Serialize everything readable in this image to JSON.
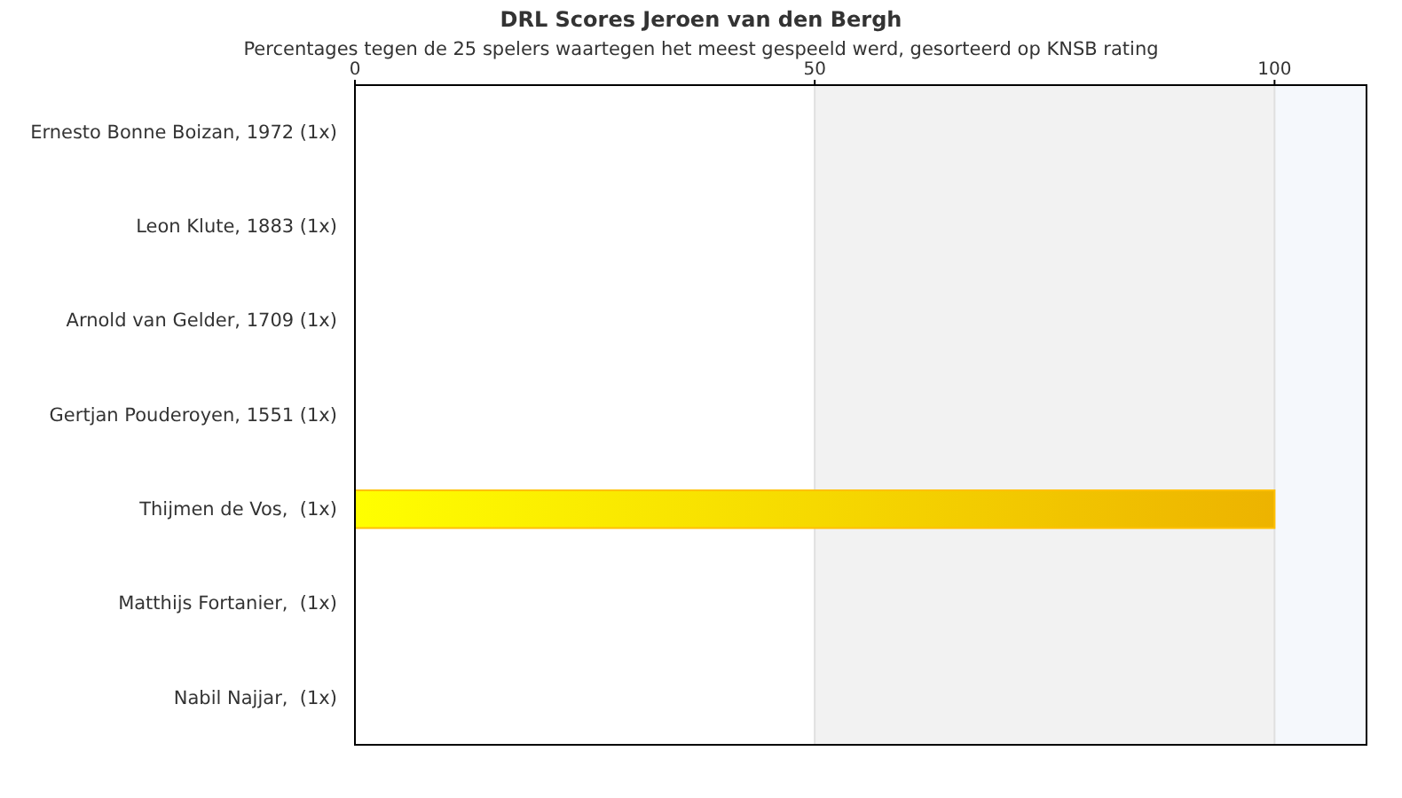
{
  "chart_data": {
    "type": "bar",
    "orientation": "horizontal",
    "title": "DRL Scores Jeroen van den Bergh",
    "subtitle": "Percentages tegen de 25 spelers waartegen het meest gespeeld werd, gesorteerd op KNSB rating",
    "categories": [
      "Ernesto Bonne Boizan, 1972 (1x)",
      "Leon Klute, 1883 (1x)",
      "Arnold van Gelder, 1709 (1x)",
      "Gertjan Pouderoyen, 1551 (1x)",
      "Thijmen de Vos,  (1x)",
      "Matthijs Fortanier,  (1x)",
      "Nabil Najjar,  (1x)"
    ],
    "values": [
      0,
      0,
      0,
      0,
      100,
      0,
      0
    ],
    "color": "#ffc000",
    "xlim": [
      0,
      110
    ],
    "xticks": [
      0,
      50,
      100
    ],
    "grid": "x",
    "bands": [
      {
        "axis": "x",
        "from": 50,
        "to": 100,
        "color": "#f2f2f2"
      },
      {
        "axis": "x",
        "from": 100,
        "to": 110,
        "color": "#f5f8fc"
      }
    ]
  }
}
